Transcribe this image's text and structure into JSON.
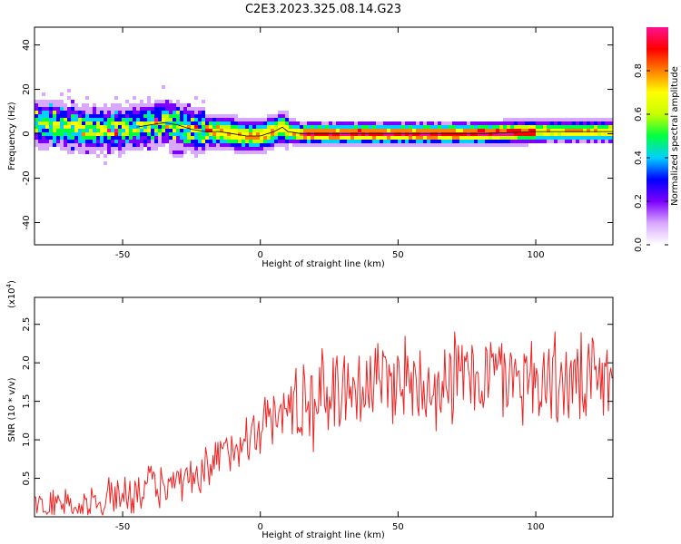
{
  "title": "C2E3.2023.325.08.14.G23",
  "chart_data": [
    {
      "type": "heatmap",
      "xlabel": "Height of straight line (km)",
      "ylabel": "Frequency (Hz)",
      "xlim": [
        -82,
        128
      ],
      "ylim": [
        -50,
        48
      ],
      "xticks": [
        -50,
        0,
        50,
        100
      ],
      "yticks": [
        -40,
        -20,
        0,
        20,
        40
      ],
      "colorbar": {
        "label": "Normalized spectral amplitude",
        "range": [
          0,
          1
        ],
        "ticks": [
          "0.0",
          "0.2",
          "0.4",
          "0.6",
          "0.8"
        ],
        "colors": [
          "#ffffff",
          "#d8a8ff",
          "#7b00ff",
          "#0000ff",
          "#00d0ff",
          "#00ff40",
          "#c8ff00",
          "#ffff00",
          "#ff8000",
          "#ff0000",
          "#ff1090"
        ]
      },
      "ridge": {
        "x": [
          -82,
          -70,
          -60,
          -50,
          -45,
          -40,
          -35,
          -30,
          -25,
          -20,
          -15,
          -10,
          -5,
          0,
          5,
          8,
          10,
          15,
          20,
          40,
          60,
          80,
          100,
          110,
          120,
          128
        ],
        "y": [
          5,
          3,
          2,
          2,
          3,
          4,
          5,
          4,
          2,
          1,
          1,
          0,
          -1,
          -1,
          1,
          3,
          1,
          0,
          0,
          0,
          0,
          0,
          1,
          1,
          1,
          1
        ]
      },
      "secondary_blob": {
        "x": -30,
        "y": -8
      }
    },
    {
      "type": "line",
      "xlabel": "Height of straight line (km)",
      "ylabel": "SNR (10 * v/v)",
      "multiplier": "(x10",
      "multiplier_exp": "4",
      "multiplier_close": ")",
      "xlim": [
        -82,
        128
      ],
      "ylim": [
        0,
        2.85
      ],
      "xticks": [
        -50,
        0,
        50,
        100
      ],
      "yticks": [
        "0.5",
        "1.0",
        "1.5",
        "2.0",
        "2.5"
      ],
      "series_color": "#ee2222",
      "trend": {
        "x": [
          -82,
          -60,
          -50,
          -40,
          -30,
          -20,
          -15,
          -10,
          -5,
          0,
          10,
          20,
          30,
          40,
          50,
          60,
          70,
          80,
          90,
          100,
          110,
          120,
          128
        ],
        "y": [
          0.12,
          0.15,
          0.3,
          0.4,
          0.4,
          0.5,
          0.75,
          0.9,
          1.05,
          1.2,
          1.4,
          1.55,
          1.7,
          1.75,
          1.8,
          1.75,
          1.8,
          1.85,
          1.85,
          1.8,
          1.75,
          1.7,
          1.75
        ]
      }
    }
  ]
}
